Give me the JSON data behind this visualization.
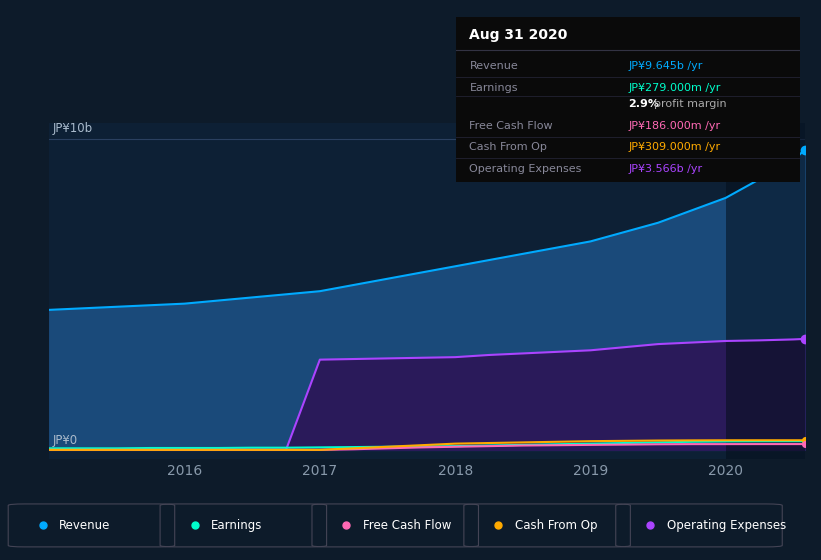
{
  "bg_color": "#0d1b2a",
  "plot_bg_color": "#0d2035",
  "grid_color": "#2a4060",
  "years": [
    2015.0,
    2015.25,
    2015.5,
    2015.75,
    2016.0,
    2016.25,
    2016.5,
    2016.75,
    2017.0,
    2017.25,
    2017.5,
    2017.75,
    2018.0,
    2018.25,
    2018.5,
    2018.75,
    2019.0,
    2019.25,
    2019.5,
    2019.75,
    2020.0,
    2020.25,
    2020.5,
    2020.583
  ],
  "revenue": [
    4.5,
    4.55,
    4.6,
    4.65,
    4.7,
    4.8,
    4.9,
    5.0,
    5.1,
    5.3,
    5.5,
    5.7,
    5.9,
    6.1,
    6.3,
    6.5,
    6.7,
    7.0,
    7.3,
    7.7,
    8.1,
    8.7,
    9.3,
    9.645
  ],
  "operating_expenses": [
    0.0,
    0.0,
    0.0,
    0.0,
    0.0,
    0.0,
    0.0,
    0.0,
    2.9,
    2.92,
    2.94,
    2.96,
    2.98,
    3.05,
    3.1,
    3.15,
    3.2,
    3.3,
    3.4,
    3.45,
    3.5,
    3.52,
    3.55,
    3.566
  ],
  "earnings": [
    0.05,
    0.05,
    0.05,
    0.06,
    0.06,
    0.06,
    0.07,
    0.07,
    0.08,
    0.09,
    0.1,
    0.11,
    0.12,
    0.14,
    0.16,
    0.18,
    0.2,
    0.22,
    0.24,
    0.26,
    0.27,
    0.275,
    0.278,
    0.279
  ],
  "free_cash_flow": [
    0.0,
    0.0,
    0.0,
    0.0,
    0.0,
    0.0,
    0.0,
    0.0,
    0.0,
    0.02,
    0.05,
    0.08,
    0.1,
    0.12,
    0.14,
    0.15,
    0.16,
    0.17,
    0.18,
    0.185,
    0.185,
    0.186,
    0.186,
    0.186
  ],
  "cash_from_op": [
    0.0,
    0.0,
    0.0,
    0.0,
    0.0,
    0.0,
    0.0,
    0.0,
    0.0,
    0.05,
    0.1,
    0.15,
    0.2,
    0.22,
    0.24,
    0.26,
    0.28,
    0.29,
    0.3,
    0.305,
    0.308,
    0.309,
    0.309,
    0.309
  ],
  "revenue_color": "#00aaff",
  "revenue_fill": "#1a4a7a",
  "earnings_color": "#00ffcc",
  "free_cash_flow_color": "#ff69b4",
  "cash_from_op_color": "#ffaa00",
  "operating_expenses_color": "#aa44ff",
  "operating_expenses_fill": "#2a1a5a",
  "highlight_x_start": 2020.0,
  "highlight_x_end": 2020.583,
  "x_min": 2015.0,
  "x_max": 2020.583,
  "y_min": -0.3,
  "y_max": 10.5,
  "xtick_labels": [
    "2016",
    "2017",
    "2018",
    "2019",
    "2020"
  ],
  "xtick_values": [
    2016.0,
    2017.0,
    2018.0,
    2019.0,
    2020.0
  ],
  "infobox": {
    "title": "Aug 31 2020",
    "rows": [
      {
        "label": "Revenue",
        "value": "JP¥9.645b /yr",
        "value_color": "#00aaff"
      },
      {
        "label": "Earnings",
        "value": "JP¥279.000m /yr",
        "value_color": "#00ffcc"
      },
      {
        "label": "",
        "value": "2.9% profit margin",
        "value_color": "#ffffff",
        "bold_part": "2.9%"
      },
      {
        "label": "Free Cash Flow",
        "value": "JP¥186.000m /yr",
        "value_color": "#ff69b4"
      },
      {
        "label": "Cash From Op",
        "value": "JP¥309.000m /yr",
        "value_color": "#ffaa00"
      },
      {
        "label": "Operating Expenses",
        "value": "JP¥3.566b /yr",
        "value_color": "#aa44ff"
      }
    ]
  },
  "legend_items": [
    {
      "label": "Revenue",
      "color": "#00aaff"
    },
    {
      "label": "Earnings",
      "color": "#00ffcc"
    },
    {
      "label": "Free Cash Flow",
      "color": "#ff69b4"
    },
    {
      "label": "Cash From Op",
      "color": "#ffaa00"
    },
    {
      "label": "Operating Expenses",
      "color": "#aa44ff"
    }
  ]
}
